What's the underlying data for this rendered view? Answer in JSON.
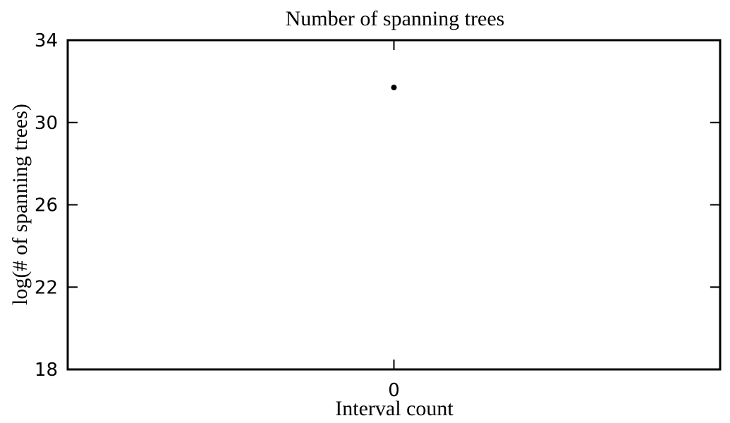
{
  "chart_data": {
    "type": "scatter",
    "title": "Number of spanning trees",
    "xlabel": "Interval count",
    "ylabel": "log(# of spanning trees)",
    "x_ticks": [
      "0"
    ],
    "y_ticks": [
      "18",
      "22",
      "26",
      "30",
      "34"
    ],
    "xlim": [
      -1,
      1
    ],
    "ylim": [
      18,
      34
    ],
    "grid": false,
    "series": [
      {
        "x": [
          0
        ],
        "y": [
          31.7
        ],
        "color": "#000000"
      }
    ]
  }
}
